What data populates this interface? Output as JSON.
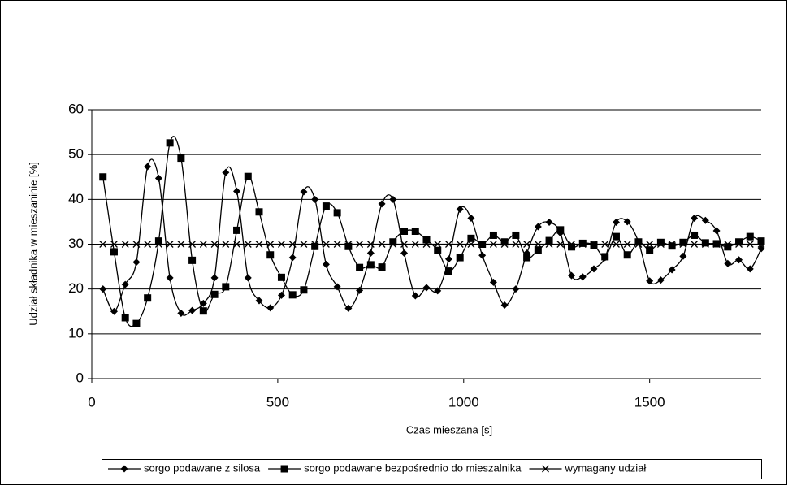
{
  "chart_data": {
    "type": "line",
    "x_label": "Czas mieszana [s]",
    "y_label": "Udział składnika w mieszaninie [%]",
    "x": [
      30,
      60,
      90,
      120,
      150,
      180,
      210,
      240,
      270,
      300,
      330,
      360,
      390,
      420,
      450,
      480,
      510,
      540,
      570,
      600,
      630,
      660,
      690,
      720,
      750,
      780,
      810,
      840,
      870,
      900,
      930,
      960,
      990,
      1020,
      1050,
      1080,
      1110,
      1140,
      1170,
      1200,
      1230,
      1260,
      1290,
      1320,
      1350,
      1380,
      1410,
      1440,
      1470,
      1500,
      1530,
      1560,
      1590,
      1620,
      1650,
      1680,
      1710,
      1740,
      1770,
      1800
    ],
    "series": [
      {
        "name": "sorgo podawane z silosa",
        "color": "#000000",
        "marker": "diamond",
        "values": [
          20,
          15,
          21,
          26,
          47.3,
          44.7,
          22.5,
          14.6,
          15.2,
          16.8,
          22.5,
          46,
          41.8,
          22.5,
          17.4,
          15.8,
          18.6,
          27,
          41.7,
          40,
          25.5,
          20.5,
          15.7,
          19.7,
          28,
          39,
          40,
          28,
          18.5,
          20.3,
          19.6,
          26.7,
          37.8,
          35.8,
          27.5,
          21.5,
          16.4,
          20,
          28,
          33.9,
          34.9,
          32.5,
          23,
          22.7,
          24.5,
          27,
          34.9,
          35,
          30.5,
          21.8,
          22,
          24.3,
          27.3,
          35.8,
          35.3,
          33,
          25.7,
          26.5,
          24.5,
          29
        ]
      },
      {
        "name": "sorgo podawane bezpośrednio do mieszalnika",
        "color": "#000000",
        "marker": "square",
        "values": [
          45,
          28.3,
          13.6,
          12.3,
          18,
          30.7,
          52.6,
          49.2,
          26.4,
          15.1,
          18.8,
          20.5,
          33.1,
          45.1,
          37.2,
          27.6,
          22.6,
          18.7,
          19.8,
          29.5,
          38.5,
          37,
          29.5,
          24.8,
          25.4,
          24.9,
          30.5,
          32.9,
          32.9,
          31,
          28.6,
          24,
          27,
          31.3,
          30,
          32,
          30.5,
          32,
          27,
          28.7,
          30.8,
          33.2,
          29.4,
          30.2,
          29.8,
          27.2,
          31.7,
          27.6,
          30.5,
          28.7,
          30.4,
          29.6,
          30.4,
          32,
          30.3,
          30.1,
          29.4,
          30.5,
          31.7,
          30.7
        ]
      },
      {
        "name": "wymagany udział",
        "color": "#000000",
        "marker": "cross",
        "values": [
          30,
          30,
          30,
          30,
          30,
          30,
          30,
          30,
          30,
          30,
          30,
          30,
          30,
          30,
          30,
          30,
          30,
          30,
          30,
          30,
          30,
          30,
          30,
          30,
          30,
          30,
          30,
          30,
          30,
          30,
          30,
          30,
          30,
          30,
          30,
          30,
          30,
          30,
          30,
          30,
          30,
          30,
          30,
          30,
          30,
          30,
          30,
          30,
          30,
          30,
          30,
          30,
          30,
          30,
          30,
          30,
          30,
          30,
          30,
          30
        ]
      }
    ],
    "xlim": [
      0,
      1800
    ],
    "xticks": [
      0,
      500,
      1000,
      1500
    ],
    "ylim": [
      0,
      60
    ],
    "yticks": [
      0,
      10,
      20,
      30,
      40,
      50,
      60
    ],
    "grid": true,
    "smooth": true,
    "legend": "bottom"
  }
}
